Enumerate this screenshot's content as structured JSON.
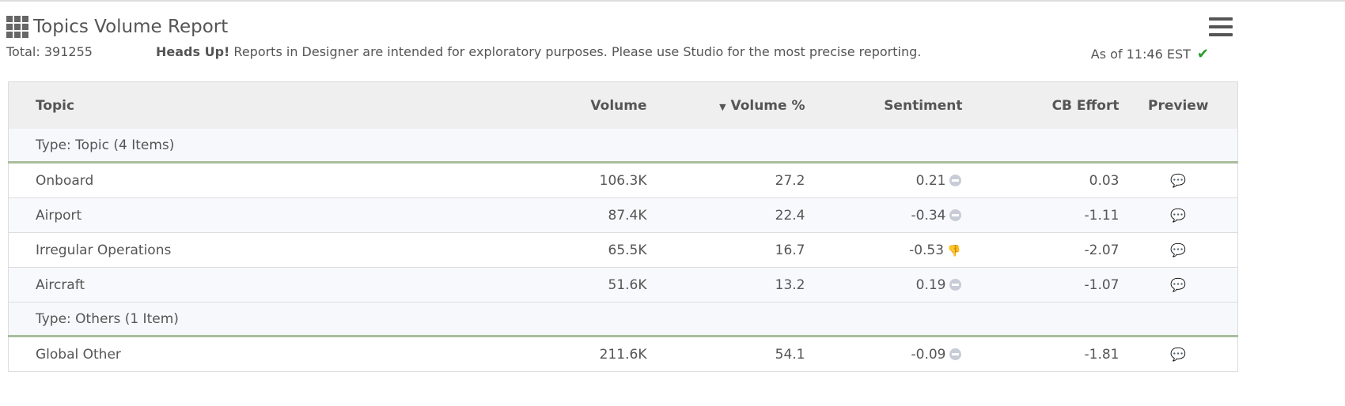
{
  "header": {
    "title": "Topics Volume Report",
    "total": "Total: 391255",
    "heads_up_bold": "Heads Up!",
    "heads_up_text": " Reports in Designer are intended for exploratory purposes. Please use Studio for the most precise reporting.",
    "as_of": "As of 11:46 EST"
  },
  "table": {
    "columns": [
      "Topic",
      "Volume",
      "Volume %",
      "Sentiment",
      "CB Effort",
      "Preview"
    ],
    "sort": {
      "column": "Volume %",
      "direction": "desc"
    },
    "groups": [
      {
        "label": "Type: Topic (4 Items)",
        "rows": [
          {
            "topic": "Onboard",
            "volume": "106.3K",
            "volume_pct": "27.2",
            "sentiment": "0.21",
            "sentiment_icon": "neutral",
            "cb_effort": "0.03"
          },
          {
            "topic": "Airport",
            "volume": "87.4K",
            "volume_pct": "22.4",
            "sentiment": "-0.34",
            "sentiment_icon": "neutral",
            "cb_effort": "-1.11"
          },
          {
            "topic": "Irregular Operations",
            "volume": "65.5K",
            "volume_pct": "16.7",
            "sentiment": "-0.53",
            "sentiment_icon": "thumbs-down",
            "cb_effort": "-2.07"
          },
          {
            "topic": "Aircraft",
            "volume": "51.6K",
            "volume_pct": "13.2",
            "sentiment": "0.19",
            "sentiment_icon": "neutral",
            "cb_effort": "-1.07"
          }
        ]
      },
      {
        "label": "Type: Others (1 Item)",
        "rows": [
          {
            "topic": "Global Other",
            "volume": "211.6K",
            "volume_pct": "54.1",
            "sentiment": "-0.09",
            "sentiment_icon": "neutral",
            "cb_effort": "-1.81"
          }
        ]
      }
    ]
  },
  "colors": {
    "group_border": "#a9bd9c",
    "negative": "#e02020",
    "ok": "#2a9d2a"
  }
}
